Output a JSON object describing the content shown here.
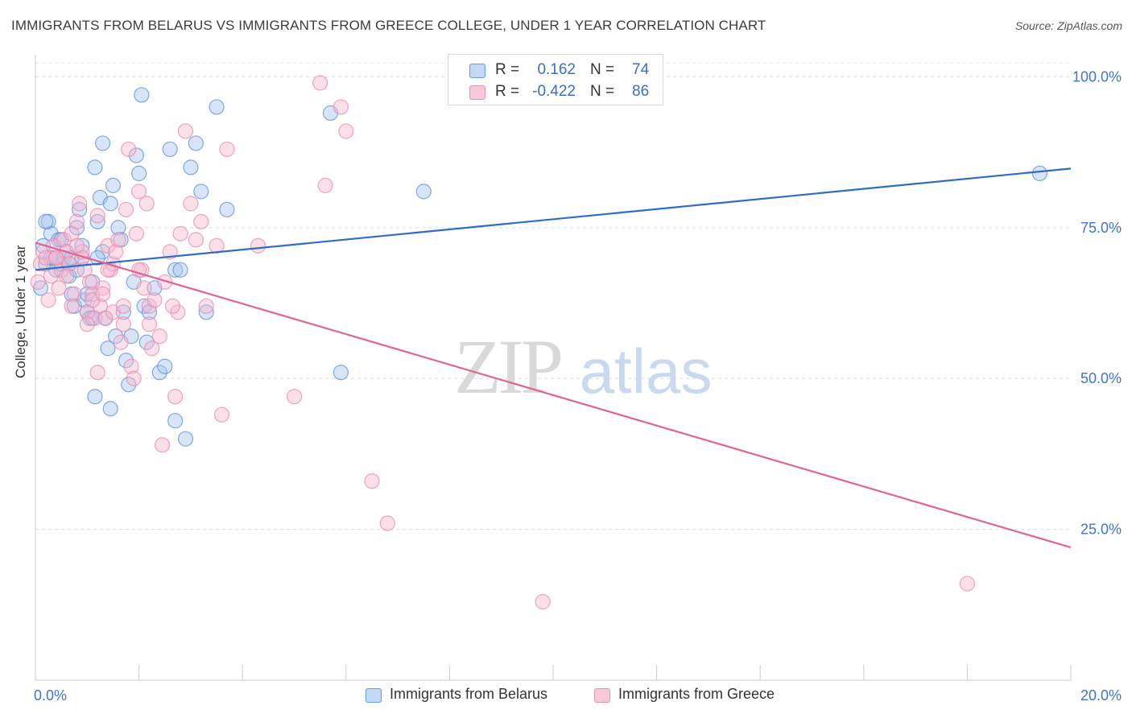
{
  "title": "IMMIGRANTS FROM BELARUS VS IMMIGRANTS FROM GREECE COLLEGE, UNDER 1 YEAR CORRELATION CHART",
  "source": "Source: ZipAtlas.com",
  "watermark": {
    "zip": "ZIP",
    "atlas": "atlas"
  },
  "legend": {
    "r_label": "R =",
    "n_label": "N =",
    "belarus": {
      "r": "0.162",
      "n": "74"
    },
    "greece": {
      "r": "-0.422",
      "n": "86"
    }
  },
  "colors": {
    "belarus_fill": "#a9c6ef",
    "belarus_stroke": "#5b8fd6",
    "belarus_line": "#2f6cc8",
    "greece_fill": "#f6b9cf",
    "greece_stroke": "#e889ab",
    "greece_line": "#e06595",
    "axis_value": "#3f74c9",
    "grid": "#dcdcdc"
  },
  "chart_data": {
    "type": "scatter",
    "title": "IMMIGRANTS FROM BELARUS VS IMMIGRANTS FROM GREECE COLLEGE, UNDER 1 YEAR CORRELATION CHART",
    "xlabel": "",
    "ylabel": "College, Under 1 year",
    "xlim": [
      0,
      20
    ],
    "ylim": [
      0,
      105
    ],
    "x_tick_labels": [
      "0.0%",
      "20.0%"
    ],
    "y_ticks": [
      25,
      50,
      75,
      100
    ],
    "y_tick_labels": [
      "25.0%",
      "50.0%",
      "75.0%",
      "100.0%"
    ],
    "legend_position": "bottom-center",
    "series": [
      {
        "name": "Immigrants from Belarus",
        "r": 0.162,
        "n": 74,
        "trend": {
          "x": [
            0,
            20
          ],
          "y": [
            68.0,
            84.8
          ]
        },
        "points": [
          [
            0.1,
            65
          ],
          [
            0.15,
            72
          ],
          [
            0.2,
            69
          ],
          [
            0.25,
            76
          ],
          [
            0.3,
            74
          ],
          [
            0.35,
            70
          ],
          [
            0.4,
            68
          ],
          [
            0.45,
            73
          ],
          [
            0.5,
            69
          ],
          [
            0.6,
            71
          ],
          [
            0.65,
            67
          ],
          [
            0.7,
            64
          ],
          [
            0.75,
            62
          ],
          [
            0.8,
            75
          ],
          [
            0.85,
            78
          ],
          [
            0.9,
            72
          ],
          [
            0.95,
            63
          ],
          [
            1.0,
            61
          ],
          [
            1.05,
            60
          ],
          [
            1.1,
            66
          ],
          [
            1.15,
            85
          ],
          [
            1.2,
            76
          ],
          [
            1.25,
            80
          ],
          [
            1.3,
            71
          ],
          [
            1.35,
            60
          ],
          [
            1.4,
            55
          ],
          [
            1.45,
            79
          ],
          [
            1.5,
            82
          ],
          [
            1.55,
            57
          ],
          [
            1.6,
            75
          ],
          [
            1.65,
            73
          ],
          [
            1.7,
            61
          ],
          [
            1.75,
            53
          ],
          [
            1.8,
            49
          ],
          [
            1.85,
            57
          ],
          [
            1.9,
            66
          ],
          [
            1.95,
            87
          ],
          [
            2.0,
            84
          ],
          [
            2.05,
            97
          ],
          [
            2.1,
            62
          ],
          [
            2.15,
            56
          ],
          [
            2.2,
            61
          ],
          [
            2.3,
            65
          ],
          [
            2.4,
            51
          ],
          [
            2.5,
            52
          ],
          [
            2.6,
            88
          ],
          [
            2.7,
            68
          ],
          [
            2.8,
            68
          ],
          [
            2.9,
            40
          ],
          [
            3.0,
            85
          ],
          [
            3.1,
            89
          ],
          [
            3.2,
            81
          ],
          [
            3.3,
            61
          ],
          [
            3.5,
            95
          ],
          [
            3.7,
            78
          ],
          [
            0.2,
            76
          ],
          [
            0.3,
            70
          ],
          [
            0.55,
            70
          ],
          [
            0.65,
            69
          ],
          [
            0.8,
            68
          ],
          [
            0.9,
            70
          ],
          [
            1.1,
            60
          ],
          [
            1.15,
            47
          ],
          [
            1.45,
            45
          ],
          [
            1.3,
            89
          ],
          [
            1.2,
            70
          ],
          [
            2.7,
            43
          ],
          [
            5.9,
            51
          ],
          [
            5.7,
            94
          ],
          [
            7.5,
            81
          ],
          [
            19.4,
            84
          ],
          [
            0.5,
            73
          ],
          [
            0.7,
            70
          ],
          [
            1.0,
            64
          ]
        ]
      },
      {
        "name": "Immigrants from Greece",
        "r": -0.422,
        "n": 86,
        "trend": {
          "x": [
            0,
            20
          ],
          "y": [
            72.5,
            22.0
          ]
        },
        "points": [
          [
            0.05,
            66
          ],
          [
            0.1,
            69
          ],
          [
            0.15,
            71
          ],
          [
            0.2,
            70
          ],
          [
            0.25,
            63
          ],
          [
            0.3,
            67
          ],
          [
            0.35,
            72
          ],
          [
            0.4,
            70
          ],
          [
            0.45,
            65
          ],
          [
            0.5,
            68
          ],
          [
            0.55,
            73
          ],
          [
            0.6,
            71
          ],
          [
            0.65,
            69
          ],
          [
            0.7,
            74
          ],
          [
            0.75,
            64
          ],
          [
            0.8,
            76
          ],
          [
            0.85,
            79
          ],
          [
            0.9,
            70
          ],
          [
            0.95,
            68
          ],
          [
            1.0,
            61
          ],
          [
            1.05,
            66
          ],
          [
            1.1,
            64
          ],
          [
            1.15,
            60
          ],
          [
            1.2,
            77
          ],
          [
            1.25,
            62
          ],
          [
            1.3,
            65
          ],
          [
            1.35,
            60
          ],
          [
            1.4,
            72
          ],
          [
            1.45,
            68
          ],
          [
            1.5,
            69
          ],
          [
            1.55,
            71
          ],
          [
            1.6,
            73
          ],
          [
            1.65,
            56
          ],
          [
            1.7,
            59
          ],
          [
            1.75,
            78
          ],
          [
            1.8,
            88
          ],
          [
            1.85,
            52
          ],
          [
            1.9,
            50
          ],
          [
            1.95,
            74
          ],
          [
            2.0,
            81
          ],
          [
            2.05,
            68
          ],
          [
            2.1,
            65
          ],
          [
            2.15,
            79
          ],
          [
            2.2,
            62
          ],
          [
            2.3,
            63
          ],
          [
            2.4,
            57
          ],
          [
            2.5,
            66
          ],
          [
            2.6,
            71
          ],
          [
            2.7,
            47
          ],
          [
            2.8,
            74
          ],
          [
            2.9,
            91
          ],
          [
            3.0,
            79
          ],
          [
            3.1,
            73
          ],
          [
            3.2,
            76
          ],
          [
            3.3,
            62
          ],
          [
            3.5,
            72
          ],
          [
            3.7,
            88
          ],
          [
            4.3,
            72
          ],
          [
            5.0,
            47
          ],
          [
            5.5,
            99
          ],
          [
            5.6,
            82
          ],
          [
            5.9,
            95
          ],
          [
            6.0,
            91
          ],
          [
            6.5,
            33
          ],
          [
            6.8,
            26
          ],
          [
            9.8,
            13
          ],
          [
            18.0,
            16
          ],
          [
            0.4,
            70
          ],
          [
            0.6,
            67
          ],
          [
            0.9,
            71
          ],
          [
            1.1,
            63
          ],
          [
            1.3,
            64
          ],
          [
            1.5,
            61
          ],
          [
            1.7,
            62
          ],
          [
            2.0,
            68
          ],
          [
            2.25,
            55
          ],
          [
            2.45,
            39
          ],
          [
            2.75,
            61
          ],
          [
            3.6,
            44
          ],
          [
            2.65,
            62
          ],
          [
            1.0,
            59
          ],
          [
            0.7,
            62
          ],
          [
            1.2,
            51
          ],
          [
            1.4,
            68
          ],
          [
            0.8,
            72
          ],
          [
            2.2,
            59
          ]
        ]
      }
    ]
  }
}
